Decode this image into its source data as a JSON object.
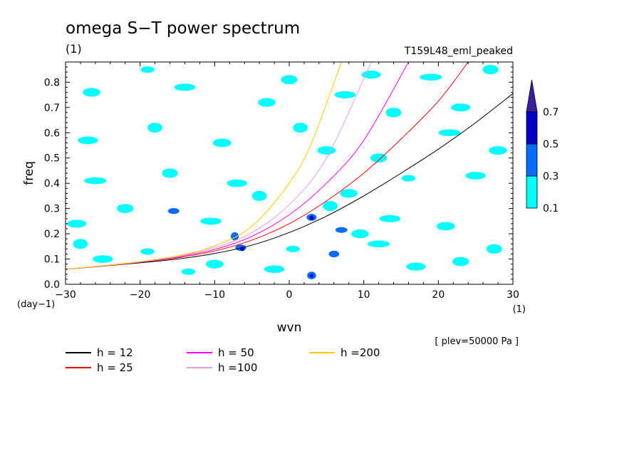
{
  "chart_data": {
    "type": "contour",
    "title": "omega S−T power spectrum",
    "subtitle": "(1)",
    "run_label": "T159L48_eml_peaked",
    "xlabel": "wvn",
    "ylabel": "freq",
    "x_unit": "(1)",
    "y_unit": "(day−1)",
    "level_note": "[ plev=50000 Pa ]",
    "xlim": [
      -30,
      30
    ],
    "ylim": [
      0,
      0.88
    ],
    "x_ticks": [
      -30,
      -20,
      -10,
      0,
      10,
      20,
      30
    ],
    "x_tick_labels": [
      "−30",
      "−20",
      "−10",
      "0",
      "10",
      "20",
      "30"
    ],
    "y_ticks": [
      0,
      0.1,
      0.2,
      0.3,
      0.4,
      0.5,
      0.6,
      0.7,
      0.8
    ],
    "y_tick_labels": [
      "0.0",
      "0.1",
      "0.2",
      "0.3",
      "0.4",
      "0.5",
      "0.6",
      "0.7",
      "0.8"
    ],
    "colorbar": {
      "levels": [
        "0.1",
        "0.3",
        "0.5",
        "0.7"
      ],
      "colors": [
        "#00ffff",
        "#0a6cff",
        "#0000c8",
        "#3c1ea0"
      ]
    },
    "dispersion_curves": [
      {
        "name": "h = 12",
        "color": "#000000",
        "x": [
          -30,
          -25,
          -20,
          -15,
          -10,
          -5,
          0,
          5,
          10,
          15,
          20,
          25,
          30
        ],
        "y": [
          0.06,
          0.072,
          0.085,
          0.1,
          0.122,
          0.155,
          0.205,
          0.27,
          0.35,
          0.44,
          0.535,
          0.64,
          0.755
        ]
      },
      {
        "name": "h = 25",
        "color": "#ff0000",
        "x": [
          -30,
          -25,
          -20,
          -15,
          -10,
          -5,
          0,
          5,
          10,
          15,
          20,
          24
        ],
        "y": [
          0.06,
          0.072,
          0.087,
          0.105,
          0.132,
          0.175,
          0.24,
          0.33,
          0.44,
          0.575,
          0.725,
          0.88
        ]
      },
      {
        "name": "h = 50",
        "color": "#ff00ff",
        "x": [
          -30,
          -25,
          -20,
          -15,
          -10,
          -5,
          0,
          5,
          10,
          16
        ],
        "y": [
          0.06,
          0.073,
          0.088,
          0.108,
          0.138,
          0.19,
          0.275,
          0.4,
          0.57,
          0.88
        ]
      },
      {
        "name": "h =100",
        "color": "#e0a0e0",
        "x": [
          -30,
          -25,
          -20,
          -15,
          -10,
          -5,
          0,
          5,
          11
        ],
        "y": [
          0.06,
          0.073,
          0.089,
          0.11,
          0.145,
          0.205,
          0.315,
          0.5,
          0.88
        ]
      },
      {
        "name": "h =200",
        "color": "#ffc800",
        "x": [
          -30,
          -25,
          -20,
          -15,
          -10,
          -5,
          0,
          3,
          7
        ],
        "y": [
          0.06,
          0.074,
          0.09,
          0.113,
          0.152,
          0.23,
          0.4,
          0.56,
          0.88
        ]
      }
    ],
    "filled_regions": [
      {
        "x": -13.5,
        "y": 0.05,
        "level": "0.1"
      },
      {
        "x": -6.5,
        "y": 0.145,
        "level": "0.3"
      },
      {
        "x": -6.3,
        "y": 0.14,
        "level": "0.5"
      },
      {
        "x": -7.3,
        "y": 0.19,
        "level": "0.3"
      },
      {
        "x": -15.5,
        "y": 0.29,
        "level": "0.3"
      },
      {
        "x": 3,
        "y": 0.265,
        "level": "0.3"
      },
      {
        "x": 3,
        "y": 0.263,
        "level": "0.5"
      },
      {
        "x": 7,
        "y": 0.215,
        "level": "0.3"
      },
      {
        "x": 6,
        "y": 0.12,
        "level": "0.3"
      },
      {
        "x": 3,
        "y": 0.035,
        "level": "0.3"
      },
      {
        "x": 3,
        "y": 0.034,
        "level": "0.5"
      },
      {
        "x": -27,
        "y": 0.57,
        "level": "0.1"
      },
      {
        "x": -26.5,
        "y": 0.76,
        "level": "0.1"
      },
      {
        "x": -18,
        "y": 0.62,
        "level": "0.1"
      },
      {
        "x": -14,
        "y": 0.78,
        "level": "0.1"
      },
      {
        "x": -9,
        "y": 0.56,
        "level": "0.1"
      },
      {
        "x": -16,
        "y": 0.44,
        "level": "0.1"
      },
      {
        "x": -26,
        "y": 0.41,
        "level": "0.1"
      },
      {
        "x": -28.5,
        "y": 0.24,
        "level": "0.1"
      },
      {
        "x": -22,
        "y": 0.3,
        "level": "0.1"
      },
      {
        "x": -19,
        "y": 0.13,
        "level": "0.1"
      },
      {
        "x": -25,
        "y": 0.1,
        "level": "0.1"
      },
      {
        "x": -3,
        "y": 0.72,
        "level": "0.1"
      },
      {
        "x": 1.5,
        "y": 0.62,
        "level": "0.1"
      },
      {
        "x": 7.5,
        "y": 0.75,
        "level": "0.1"
      },
      {
        "x": 5,
        "y": 0.53,
        "level": "0.1"
      },
      {
        "x": 14,
        "y": 0.68,
        "level": "0.1"
      },
      {
        "x": 21.5,
        "y": 0.6,
        "level": "0.1"
      },
      {
        "x": 23,
        "y": 0.7,
        "level": "0.1"
      },
      {
        "x": 12,
        "y": 0.5,
        "level": "0.1"
      },
      {
        "x": 16,
        "y": 0.42,
        "level": "0.1"
      },
      {
        "x": 25,
        "y": 0.43,
        "level": "0.1"
      },
      {
        "x": 8,
        "y": 0.36,
        "level": "0.1"
      },
      {
        "x": 5.5,
        "y": 0.31,
        "level": "0.1"
      },
      {
        "x": 13.5,
        "y": 0.26,
        "level": "0.1"
      },
      {
        "x": 21,
        "y": 0.23,
        "level": "0.1"
      },
      {
        "x": 27.5,
        "y": 0.14,
        "level": "0.1"
      },
      {
        "x": 12,
        "y": 0.16,
        "level": "0.1"
      },
      {
        "x": 17,
        "y": 0.07,
        "level": "0.1"
      },
      {
        "x": 23,
        "y": 0.09,
        "level": "0.1"
      },
      {
        "x": 0.5,
        "y": 0.14,
        "level": "0.1"
      },
      {
        "x": -2,
        "y": 0.06,
        "level": "0.1"
      },
      {
        "x": -10,
        "y": 0.08,
        "level": "0.1"
      },
      {
        "x": -4,
        "y": 0.35,
        "level": "0.1"
      },
      {
        "x": -10.5,
        "y": 0.25,
        "level": "0.1"
      },
      {
        "x": 28,
        "y": 0.53,
        "level": "0.1"
      },
      {
        "x": 27,
        "y": 0.85,
        "level": "0.1"
      },
      {
        "x": 19,
        "y": 0.82,
        "level": "0.1"
      },
      {
        "x": 11,
        "y": 0.83,
        "level": "0.1"
      },
      {
        "x": 0,
        "y": 0.81,
        "level": "0.1"
      },
      {
        "x": -19,
        "y": 0.85,
        "level": "0.1"
      },
      {
        "x": -7,
        "y": 0.4,
        "level": "0.1"
      },
      {
        "x": 9.5,
        "y": 0.2,
        "level": "0.1"
      },
      {
        "x": -28,
        "y": 0.16,
        "level": "0.1"
      }
    ]
  }
}
